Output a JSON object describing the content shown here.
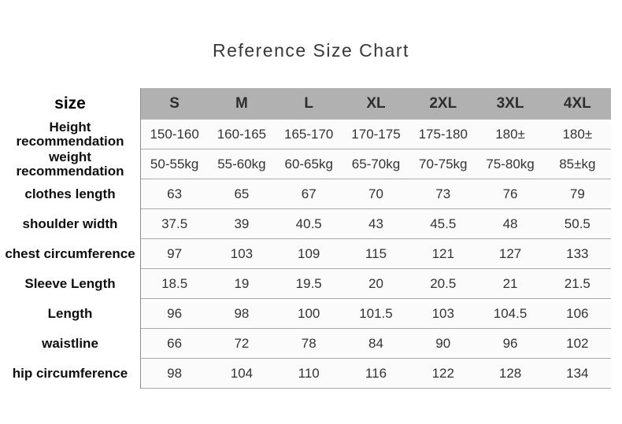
{
  "title": "Reference Size Chart",
  "chart_data": {
    "type": "table",
    "title": "Reference Size Chart",
    "corner_label": "size",
    "columns": [
      "S",
      "M",
      "L",
      "XL",
      "2XL",
      "3XL",
      "4XL"
    ],
    "rows": [
      {
        "label": "Height recommendation",
        "values": [
          "150-160",
          "160-165",
          "165-170",
          "170-175",
          "175-180",
          "180±",
          "180±"
        ]
      },
      {
        "label": "weight recommendation",
        "values": [
          "50-55kg",
          "55-60kg",
          "60-65kg",
          "65-70kg",
          "70-75kg",
          "75-80kg",
          "85±kg"
        ]
      },
      {
        "label": "clothes length",
        "values": [
          "63",
          "65",
          "67",
          "70",
          "73",
          "76",
          "79"
        ]
      },
      {
        "label": "shoulder width",
        "values": [
          "37.5",
          "39",
          "40.5",
          "43",
          "45.5",
          "48",
          "50.5"
        ]
      },
      {
        "label": "chest circumference",
        "values": [
          "97",
          "103",
          "109",
          "115",
          "121",
          "127",
          "133"
        ]
      },
      {
        "label": "Sleeve Length",
        "values": [
          "18.5",
          "19",
          "19.5",
          "20",
          "20.5",
          "21",
          "21.5"
        ]
      },
      {
        "label": "Length",
        "values": [
          "96",
          "98",
          "100",
          "101.5",
          "103",
          "104.5",
          "106"
        ]
      },
      {
        "label": "waistline",
        "values": [
          "66",
          "72",
          "78",
          "84",
          "90",
          "96",
          "102"
        ]
      },
      {
        "label": "hip circumference",
        "values": [
          "98",
          "104",
          "110",
          "116",
          "122",
          "128",
          "134"
        ]
      }
    ],
    "layout": {
      "grid": "horizontal-rules-only",
      "legend": "none"
    },
    "colors": {
      "header_bg": "#b1b1b1",
      "row_line": "#a9a9a9",
      "row_bg": "#fbfbfb",
      "left_border": "#8d8d8d",
      "text": "#333333",
      "title_text": "#383838"
    }
  }
}
